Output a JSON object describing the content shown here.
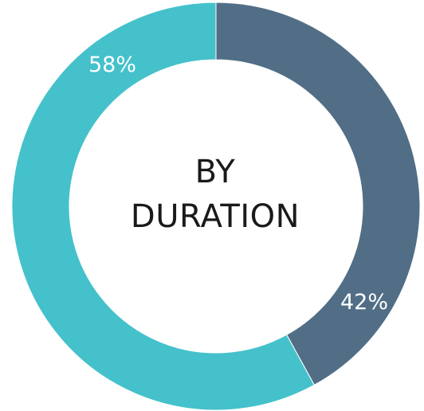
{
  "chart_data": {
    "type": "pie",
    "center_title": [
      "BY",
      "DURATION"
    ],
    "slices": [
      {
        "value": 42,
        "label": "42%",
        "color": "#516e86"
      },
      {
        "value": 58,
        "label": "58%",
        "color": "#44c1cb"
      }
    ],
    "start": "top",
    "direction": "clockwise",
    "legend": "none",
    "background_color": "#ffffff"
  }
}
